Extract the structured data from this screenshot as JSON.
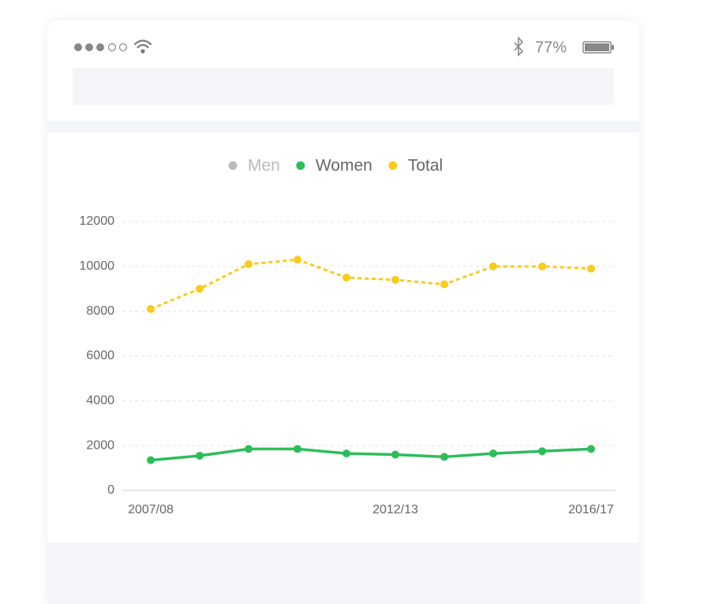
{
  "status_bar": {
    "battery": "77%"
  },
  "chart_data": {
    "type": "line",
    "categories": [
      "2007/08",
      null,
      null,
      null,
      null,
      "2012/13",
      null,
      null,
      null,
      "2016/17"
    ],
    "series": [
      {
        "name": "Men",
        "color": "#bbbbbb",
        "hidden": true,
        "values": [
          null,
          null,
          null,
          null,
          null,
          null,
          null,
          null,
          null,
          null
        ]
      },
      {
        "name": "Women",
        "color": "#2dbd5a",
        "dashed": false,
        "values": [
          1350,
          1550,
          1850,
          1850,
          1650,
          1600,
          1500,
          1650,
          1750,
          1850
        ]
      },
      {
        "name": "Total",
        "color": "#f8cc1b",
        "dashed": true,
        "values": [
          8100,
          9000,
          10100,
          10300,
          9500,
          9400,
          9200,
          10000,
          10000,
          9900
        ]
      }
    ],
    "ylim": [
      0,
      12000
    ],
    "yticks": [
      0,
      2000,
      4000,
      6000,
      8000,
      10000,
      12000
    ],
    "grid": true,
    "legend": "top"
  }
}
